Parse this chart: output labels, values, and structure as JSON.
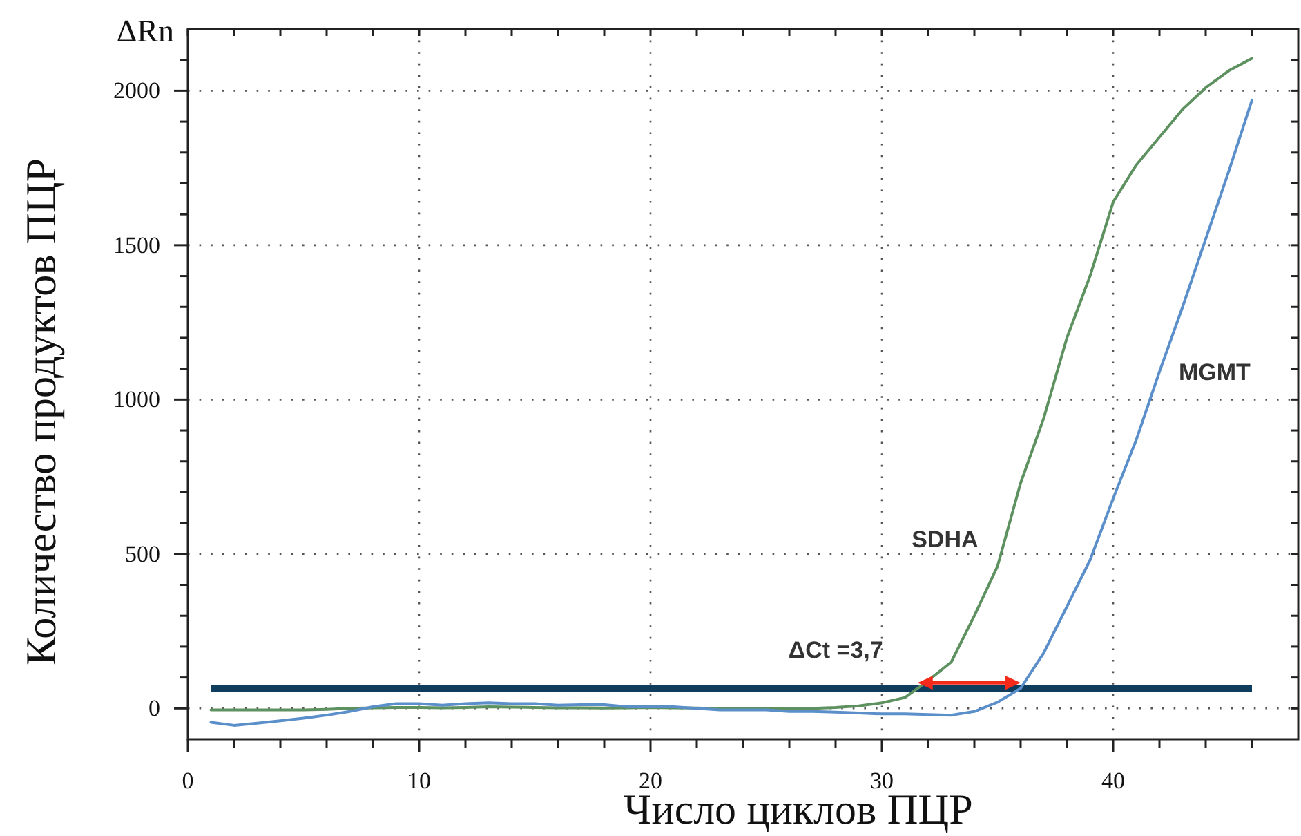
{
  "chart_data": {
    "type": "line",
    "xlabel": "Число циклов ПЦР",
    "ylabel": "Количество продуктов ПЦР",
    "annotations": [
      "ΔRn",
      "ΔCt =3,7"
    ],
    "x": [
      1,
      2,
      3,
      4,
      5,
      6,
      7,
      8,
      9,
      10,
      11,
      12,
      13,
      14,
      15,
      16,
      17,
      18,
      19,
      20,
      21,
      22,
      23,
      24,
      25,
      26,
      27,
      28,
      29,
      30,
      31,
      32,
      33,
      34,
      35,
      36,
      37,
      38,
      39,
      40,
      41,
      42,
      43,
      44,
      45,
      46
    ],
    "series": [
      {
        "name": "SDHA",
        "color": "#5e9160",
        "values": [
          -5,
          -5,
          -5,
          -5,
          -5,
          -3,
          0,
          2,
          3,
          3,
          2,
          3,
          5,
          4,
          3,
          2,
          2,
          1,
          2,
          3,
          2,
          1,
          0,
          0,
          0,
          0,
          0,
          3,
          8,
          18,
          35,
          90,
          150,
          300,
          460,
          730,
          940,
          1200,
          1400,
          1640,
          1760,
          1850,
          1940,
          2010,
          2065,
          2105
        ]
      },
      {
        "name": "MGMT",
        "color": "#5b8fca",
        "values": [
          -45,
          -55,
          -48,
          -40,
          -32,
          -22,
          -10,
          5,
          15,
          15,
          10,
          15,
          18,
          15,
          15,
          10,
          12,
          12,
          5,
          5,
          5,
          0,
          -5,
          -5,
          -5,
          -10,
          -10,
          -12,
          -15,
          -18,
          -18,
          -20,
          -22,
          -10,
          20,
          65,
          180,
          330,
          480,
          680,
          870,
          1090,
          1300,
          1520,
          1740,
          1970
        ]
      }
    ],
    "ref_lines": [
      {
        "axis": "y",
        "value": 65,
        "color": "#0f3d5e"
      }
    ],
    "xlim": [
      0,
      48
    ],
    "xticks": [
      0,
      {
        "value": 2,
        "label": null
      },
      {
        "value": 4,
        "label": null
      },
      {
        "value": 6,
        "label": null
      },
      {
        "value": 8,
        "label": null
      },
      10,
      {
        "value": 12,
        "label": null
      },
      {
        "value": 14,
        "label": null
      },
      {
        "value": 16,
        "label": null
      },
      {
        "value": 18,
        "label": null
      },
      20,
      {
        "value": 22,
        "label": null
      },
      {
        "value": 24,
        "label": null
      },
      {
        "value": 26,
        "label": null
      },
      {
        "value": 28,
        "label": null
      },
      30,
      {
        "value": 32,
        "label": null
      },
      {
        "value": 34,
        "label": null
      },
      {
        "value": 36,
        "label": null
      },
      {
        "value": 38,
        "label": null
      },
      40,
      {
        "value": 42,
        "label": null
      },
      {
        "value": 44,
        "label": null
      },
      {
        "value": 46,
        "label": null
      }
    ],
    "ylim": [
      -100,
      2200
    ],
    "yticks": [
      0,
      {
        "value": 100,
        "label": null
      },
      {
        "value": 200,
        "label": null
      },
      {
        "value": 300,
        "label": null
      },
      {
        "value": 400,
        "label": null
      },
      500,
      {
        "value": 600,
        "label": null
      },
      {
        "value": 700,
        "label": null
      },
      {
        "value": 800,
        "label": null
      },
      {
        "value": 900,
        "label": null
      },
      1000,
      {
        "value": 1100,
        "label": null
      },
      {
        "value": 1200,
        "label": null
      },
      {
        "value": 1300,
        "label": null
      },
      {
        "value": 1400,
        "label": null
      },
      1500,
      {
        "value": 1600,
        "label": null
      },
      {
        "value": 1700,
        "label": null
      },
      {
        "value": 1800,
        "label": null
      },
      {
        "value": 1900,
        "label": null
      },
      2000,
      {
        "value": 2100,
        "label": null
      }
    ],
    "grid": true,
    "marker": "none",
    "line_style": "solid"
  }
}
